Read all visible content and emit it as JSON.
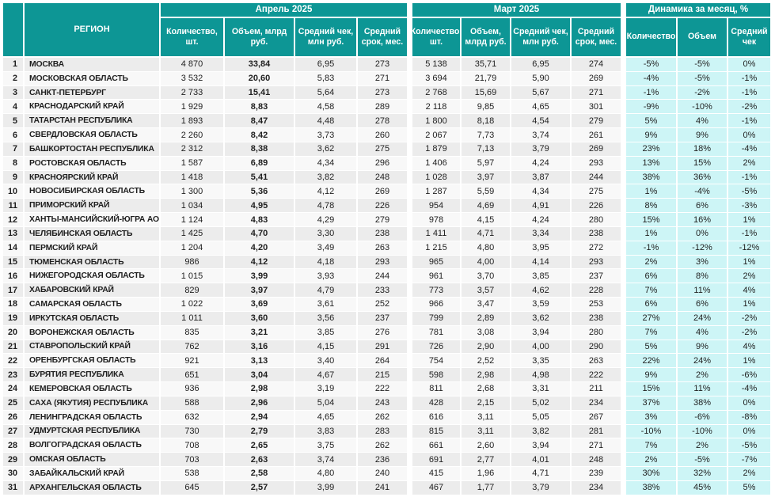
{
  "chart_data": {
    "type": "table",
    "region_header": "РЕГИОН",
    "groups": [
      {
        "label": "Апрель 2025",
        "cols": [
          "Количество, шт.",
          "Объем, млрд руб.",
          "Средний чек, млн руб.",
          "Средний срок, мес."
        ]
      },
      {
        "label": "Март 2025",
        "cols": [
          "Количество, шт.",
          "Объем, млрд руб.",
          "Средний чек, млн руб.",
          "Средний срок, мес."
        ]
      },
      {
        "label": "Динамика за месяц, %",
        "cols": [
          "Количество",
          "Объем",
          "Средний чек"
        ]
      }
    ],
    "rows": [
      {
        "n": "1",
        "region": "МОСКВА",
        "apr": [
          "4 870",
          "33,84",
          "6,95",
          "273"
        ],
        "mar": [
          "5 138",
          "35,71",
          "6,95",
          "274"
        ],
        "dyn": [
          "-5%",
          "-5%",
          "0%"
        ]
      },
      {
        "n": "2",
        "region": "МОСКОВСКАЯ ОБЛАСТЬ",
        "apr": [
          "3 532",
          "20,60",
          "5,83",
          "271"
        ],
        "mar": [
          "3 694",
          "21,79",
          "5,90",
          "269"
        ],
        "dyn": [
          "-4%",
          "-5%",
          "-1%"
        ]
      },
      {
        "n": "3",
        "region": "САНКТ-ПЕТЕРБУРГ",
        "apr": [
          "2 733",
          "15,41",
          "5,64",
          "273"
        ],
        "mar": [
          "2 768",
          "15,69",
          "5,67",
          "271"
        ],
        "dyn": [
          "-1%",
          "-2%",
          "-1%"
        ]
      },
      {
        "n": "4",
        "region": "КРАСНОДАРСКИЙ КРАЙ",
        "apr": [
          "1 929",
          "8,83",
          "4,58",
          "289"
        ],
        "mar": [
          "2 118",
          "9,85",
          "4,65",
          "301"
        ],
        "dyn": [
          "-9%",
          "-10%",
          "-2%"
        ]
      },
      {
        "n": "5",
        "region": "ТАТАРСТАН РЕСПУБЛИКА",
        "apr": [
          "1 893",
          "8,47",
          "4,48",
          "278"
        ],
        "mar": [
          "1 800",
          "8,18",
          "4,54",
          "279"
        ],
        "dyn": [
          "5%",
          "4%",
          "-1%"
        ]
      },
      {
        "n": "6",
        "region": "СВЕРДЛОВСКАЯ ОБЛАСТЬ",
        "apr": [
          "2 260",
          "8,42",
          "3,73",
          "260"
        ],
        "mar": [
          "2 067",
          "7,73",
          "3,74",
          "261"
        ],
        "dyn": [
          "9%",
          "9%",
          "0%"
        ]
      },
      {
        "n": "7",
        "region": "БАШКОРТОСТАН РЕСПУБЛИКА",
        "apr": [
          "2 312",
          "8,38",
          "3,62",
          "275"
        ],
        "mar": [
          "1 879",
          "7,13",
          "3,79",
          "269"
        ],
        "dyn": [
          "23%",
          "18%",
          "-4%"
        ]
      },
      {
        "n": "8",
        "region": "РОСТОВСКАЯ ОБЛАСТЬ",
        "apr": [
          "1 587",
          "6,89",
          "4,34",
          "296"
        ],
        "mar": [
          "1 406",
          "5,97",
          "4,24",
          "293"
        ],
        "dyn": [
          "13%",
          "15%",
          "2%"
        ]
      },
      {
        "n": "9",
        "region": "КРАСНОЯРСКИЙ КРАЙ",
        "apr": [
          "1 418",
          "5,41",
          "3,82",
          "248"
        ],
        "mar": [
          "1 028",
          "3,97",
          "3,87",
          "244"
        ],
        "dyn": [
          "38%",
          "36%",
          "-1%"
        ]
      },
      {
        "n": "10",
        "region": "НОВОСИБИРСКАЯ ОБЛАСТЬ",
        "apr": [
          "1 300",
          "5,36",
          "4,12",
          "269"
        ],
        "mar": [
          "1 287",
          "5,59",
          "4,34",
          "275"
        ],
        "dyn": [
          "1%",
          "-4%",
          "-5%"
        ]
      },
      {
        "n": "11",
        "region": "ПРИМОРСКИЙ КРАЙ",
        "apr": [
          "1 034",
          "4,95",
          "4,78",
          "226"
        ],
        "mar": [
          "954",
          "4,69",
          "4,91",
          "226"
        ],
        "dyn": [
          "8%",
          "6%",
          "-3%"
        ]
      },
      {
        "n": "12",
        "region": "ХАНТЫ-МАНСИЙСКИЙ-ЮГРА АО",
        "apr": [
          "1 124",
          "4,83",
          "4,29",
          "279"
        ],
        "mar": [
          "978",
          "4,15",
          "4,24",
          "280"
        ],
        "dyn": [
          "15%",
          "16%",
          "1%"
        ]
      },
      {
        "n": "13",
        "region": "ЧЕЛЯБИНСКАЯ ОБЛАСТЬ",
        "apr": [
          "1 425",
          "4,70",
          "3,30",
          "238"
        ],
        "mar": [
          "1 411",
          "4,71",
          "3,34",
          "238"
        ],
        "dyn": [
          "1%",
          "0%",
          "-1%"
        ]
      },
      {
        "n": "14",
        "region": "ПЕРМСКИЙ КРАЙ",
        "apr": [
          "1 204",
          "4,20",
          "3,49",
          "263"
        ],
        "mar": [
          "1 215",
          "4,80",
          "3,95",
          "272"
        ],
        "dyn": [
          "-1%",
          "-12%",
          "-12%"
        ]
      },
      {
        "n": "15",
        "region": "ТЮМЕНСКАЯ ОБЛАСТЬ",
        "apr": [
          "986",
          "4,12",
          "4,18",
          "293"
        ],
        "mar": [
          "965",
          "4,00",
          "4,14",
          "293"
        ],
        "dyn": [
          "2%",
          "3%",
          "1%"
        ]
      },
      {
        "n": "16",
        "region": "НИЖЕГОРОДСКАЯ ОБЛАСТЬ",
        "apr": [
          "1 015",
          "3,99",
          "3,93",
          "244"
        ],
        "mar": [
          "961",
          "3,70",
          "3,85",
          "237"
        ],
        "dyn": [
          "6%",
          "8%",
          "2%"
        ]
      },
      {
        "n": "17",
        "region": "ХАБАРОВСКИЙ КРАЙ",
        "apr": [
          "829",
          "3,97",
          "4,79",
          "233"
        ],
        "mar": [
          "773",
          "3,57",
          "4,62",
          "228"
        ],
        "dyn": [
          "7%",
          "11%",
          "4%"
        ]
      },
      {
        "n": "18",
        "region": "САМАРСКАЯ ОБЛАСТЬ",
        "apr": [
          "1 022",
          "3,69",
          "3,61",
          "252"
        ],
        "mar": [
          "966",
          "3,47",
          "3,59",
          "253"
        ],
        "dyn": [
          "6%",
          "6%",
          "1%"
        ]
      },
      {
        "n": "19",
        "region": "ИРКУТСКАЯ ОБЛАСТЬ",
        "apr": [
          "1 011",
          "3,60",
          "3,56",
          "237"
        ],
        "mar": [
          "799",
          "2,89",
          "3,62",
          "238"
        ],
        "dyn": [
          "27%",
          "24%",
          "-2%"
        ]
      },
      {
        "n": "20",
        "region": "ВОРОНЕЖСКАЯ ОБЛАСТЬ",
        "apr": [
          "835",
          "3,21",
          "3,85",
          "276"
        ],
        "mar": [
          "781",
          "3,08",
          "3,94",
          "280"
        ],
        "dyn": [
          "7%",
          "4%",
          "-2%"
        ]
      },
      {
        "n": "21",
        "region": "СТАВРОПОЛЬСКИЙ КРАЙ",
        "apr": [
          "762",
          "3,16",
          "4,15",
          "291"
        ],
        "mar": [
          "726",
          "2,90",
          "4,00",
          "290"
        ],
        "dyn": [
          "5%",
          "9%",
          "4%"
        ]
      },
      {
        "n": "22",
        "region": "ОРЕНБУРГСКАЯ ОБЛАСТЬ",
        "apr": [
          "921",
          "3,13",
          "3,40",
          "264"
        ],
        "mar": [
          "754",
          "2,52",
          "3,35",
          "263"
        ],
        "dyn": [
          "22%",
          "24%",
          "1%"
        ]
      },
      {
        "n": "23",
        "region": "БУРЯТИЯ РЕСПУБЛИКА",
        "apr": [
          "651",
          "3,04",
          "4,67",
          "215"
        ],
        "mar": [
          "598",
          "2,98",
          "4,98",
          "222"
        ],
        "dyn": [
          "9%",
          "2%",
          "-6%"
        ]
      },
      {
        "n": "24",
        "region": "КЕМЕРОВСКАЯ ОБЛАСТЬ",
        "apr": [
          "936",
          "2,98",
          "3,19",
          "222"
        ],
        "mar": [
          "811",
          "2,68",
          "3,31",
          "211"
        ],
        "dyn": [
          "15%",
          "11%",
          "-4%"
        ]
      },
      {
        "n": "25",
        "region": "САХА (ЯКУТИЯ) РЕСПУБЛИКА",
        "apr": [
          "588",
          "2,96",
          "5,04",
          "243"
        ],
        "mar": [
          "428",
          "2,15",
          "5,02",
          "234"
        ],
        "dyn": [
          "37%",
          "38%",
          "0%"
        ]
      },
      {
        "n": "26",
        "region": "ЛЕНИНГРАДСКАЯ ОБЛАСТЬ",
        "apr": [
          "632",
          "2,94",
          "4,65",
          "262"
        ],
        "mar": [
          "616",
          "3,11",
          "5,05",
          "267"
        ],
        "dyn": [
          "3%",
          "-6%",
          "-8%"
        ]
      },
      {
        "n": "27",
        "region": "УДМУРТСКАЯ РЕСПУБЛИКА",
        "apr": [
          "730",
          "2,79",
          "3,83",
          "283"
        ],
        "mar": [
          "815",
          "3,11",
          "3,82",
          "281"
        ],
        "dyn": [
          "-10%",
          "-10%",
          "0%"
        ]
      },
      {
        "n": "28",
        "region": "ВОЛГОГРАДСКАЯ ОБЛАСТЬ",
        "apr": [
          "708",
          "2,65",
          "3,75",
          "262"
        ],
        "mar": [
          "661",
          "2,60",
          "3,94",
          "271"
        ],
        "dyn": [
          "7%",
          "2%",
          "-5%"
        ]
      },
      {
        "n": "29",
        "region": "ОМСКАЯ ОБЛАСТЬ",
        "apr": [
          "703",
          "2,63",
          "3,74",
          "236"
        ],
        "mar": [
          "691",
          "2,77",
          "4,01",
          "248"
        ],
        "dyn": [
          "2%",
          "-5%",
          "-7%"
        ]
      },
      {
        "n": "30",
        "region": "ЗАБАЙКАЛЬСКИЙ КРАЙ",
        "apr": [
          "538",
          "2,58",
          "4,80",
          "240"
        ],
        "mar": [
          "415",
          "1,96",
          "4,71",
          "239"
        ],
        "dyn": [
          "30%",
          "32%",
          "2%"
        ]
      },
      {
        "n": "31",
        "region": "АРХАНГЕЛЬСКАЯ ОБЛАСТЬ",
        "apr": [
          "645",
          "2,57",
          "3,99",
          "241"
        ],
        "mar": [
          "467",
          "1,77",
          "3,79",
          "234"
        ],
        "dyn": [
          "38%",
          "45%",
          "5%"
        ]
      }
    ],
    "layout": {
      "striped_rows": true,
      "dynamics_highlight": true
    },
    "colors": {
      "header_teal": "#0d9695",
      "dynamics_bg": "#cdf5f6",
      "row_odd": "#ececec",
      "row_even": "#f8f8f8",
      "header_text": "#ffffff",
      "body_text": "#1f1f1f"
    }
  }
}
